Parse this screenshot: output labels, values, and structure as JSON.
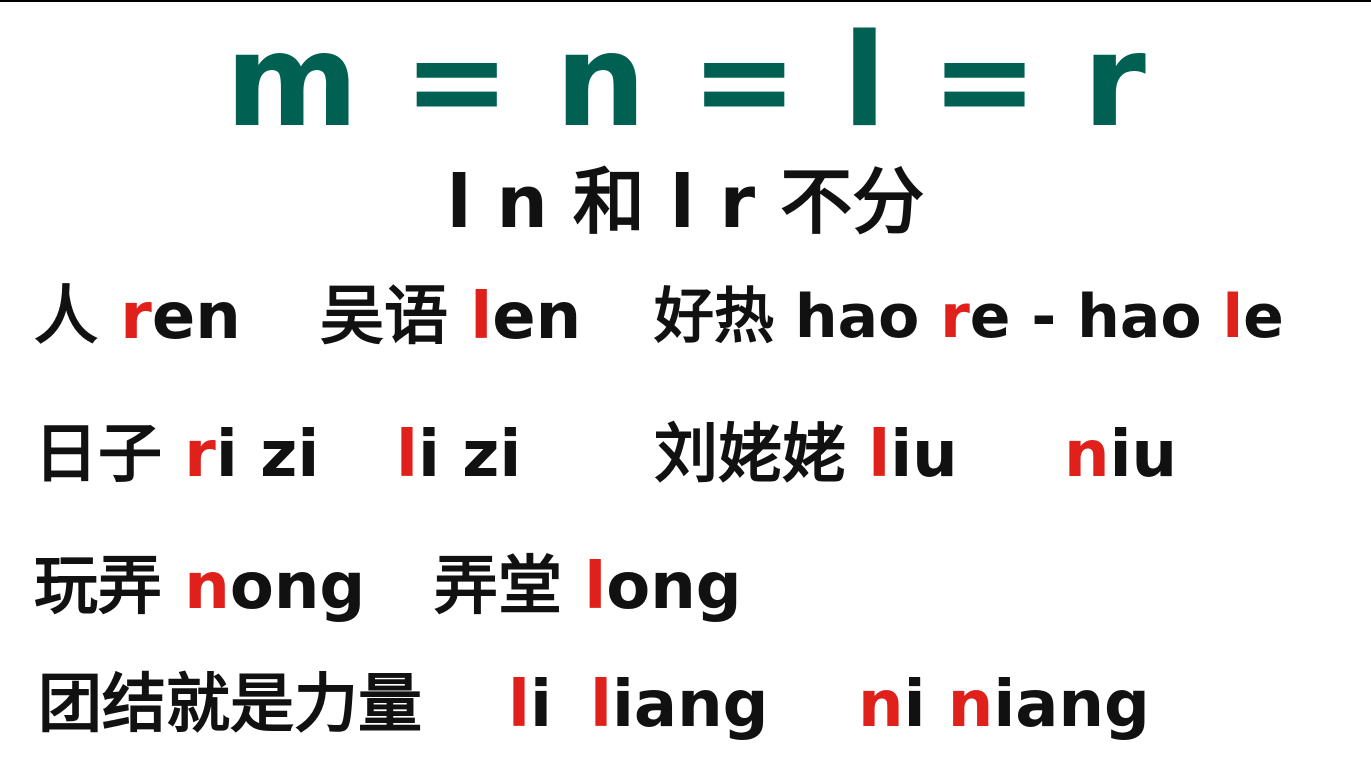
{
  "title": "m = n = l = r",
  "subtitle": "l n 和 l r 不分",
  "colors": {
    "title": "#006152",
    "text": "#111111",
    "highlight": "#e0201b"
  },
  "rows": [
    {
      "items": [
        {
          "zh": "人 ",
          "hl": "r",
          "rest": "en"
        },
        {
          "zh": "吴语 ",
          "hl": "l",
          "rest": "en"
        },
        {
          "zh": "好热 hao ",
          "hl": "r",
          "rest": "e - hao ",
          "hl2": "l",
          "rest2": "e"
        }
      ]
    },
    {
      "items": [
        {
          "zh": "日子 ",
          "hl": "r",
          "rest": "i zi"
        },
        {
          "hl": "l",
          "rest": "i zi"
        },
        {
          "zh": "刘姥姥 ",
          "hl": "l",
          "rest": "iu"
        },
        {
          "hl": "n",
          "rest": "iu"
        }
      ]
    },
    {
      "items": [
        {
          "zh": "玩弄 ",
          "hl": "n",
          "rest": "ong"
        },
        {
          "zh": "弄堂 ",
          "hl": "l",
          "rest": "ong"
        }
      ]
    },
    {
      "items": [
        {
          "zh": "团结就是力量"
        },
        {
          "hl": "l",
          "rest": "i"
        },
        {
          "hl": "l",
          "rest": "iang"
        },
        {
          "hl": "n",
          "rest": "i "
        },
        {
          "hl": "n",
          "rest": "iang"
        }
      ]
    }
  ]
}
